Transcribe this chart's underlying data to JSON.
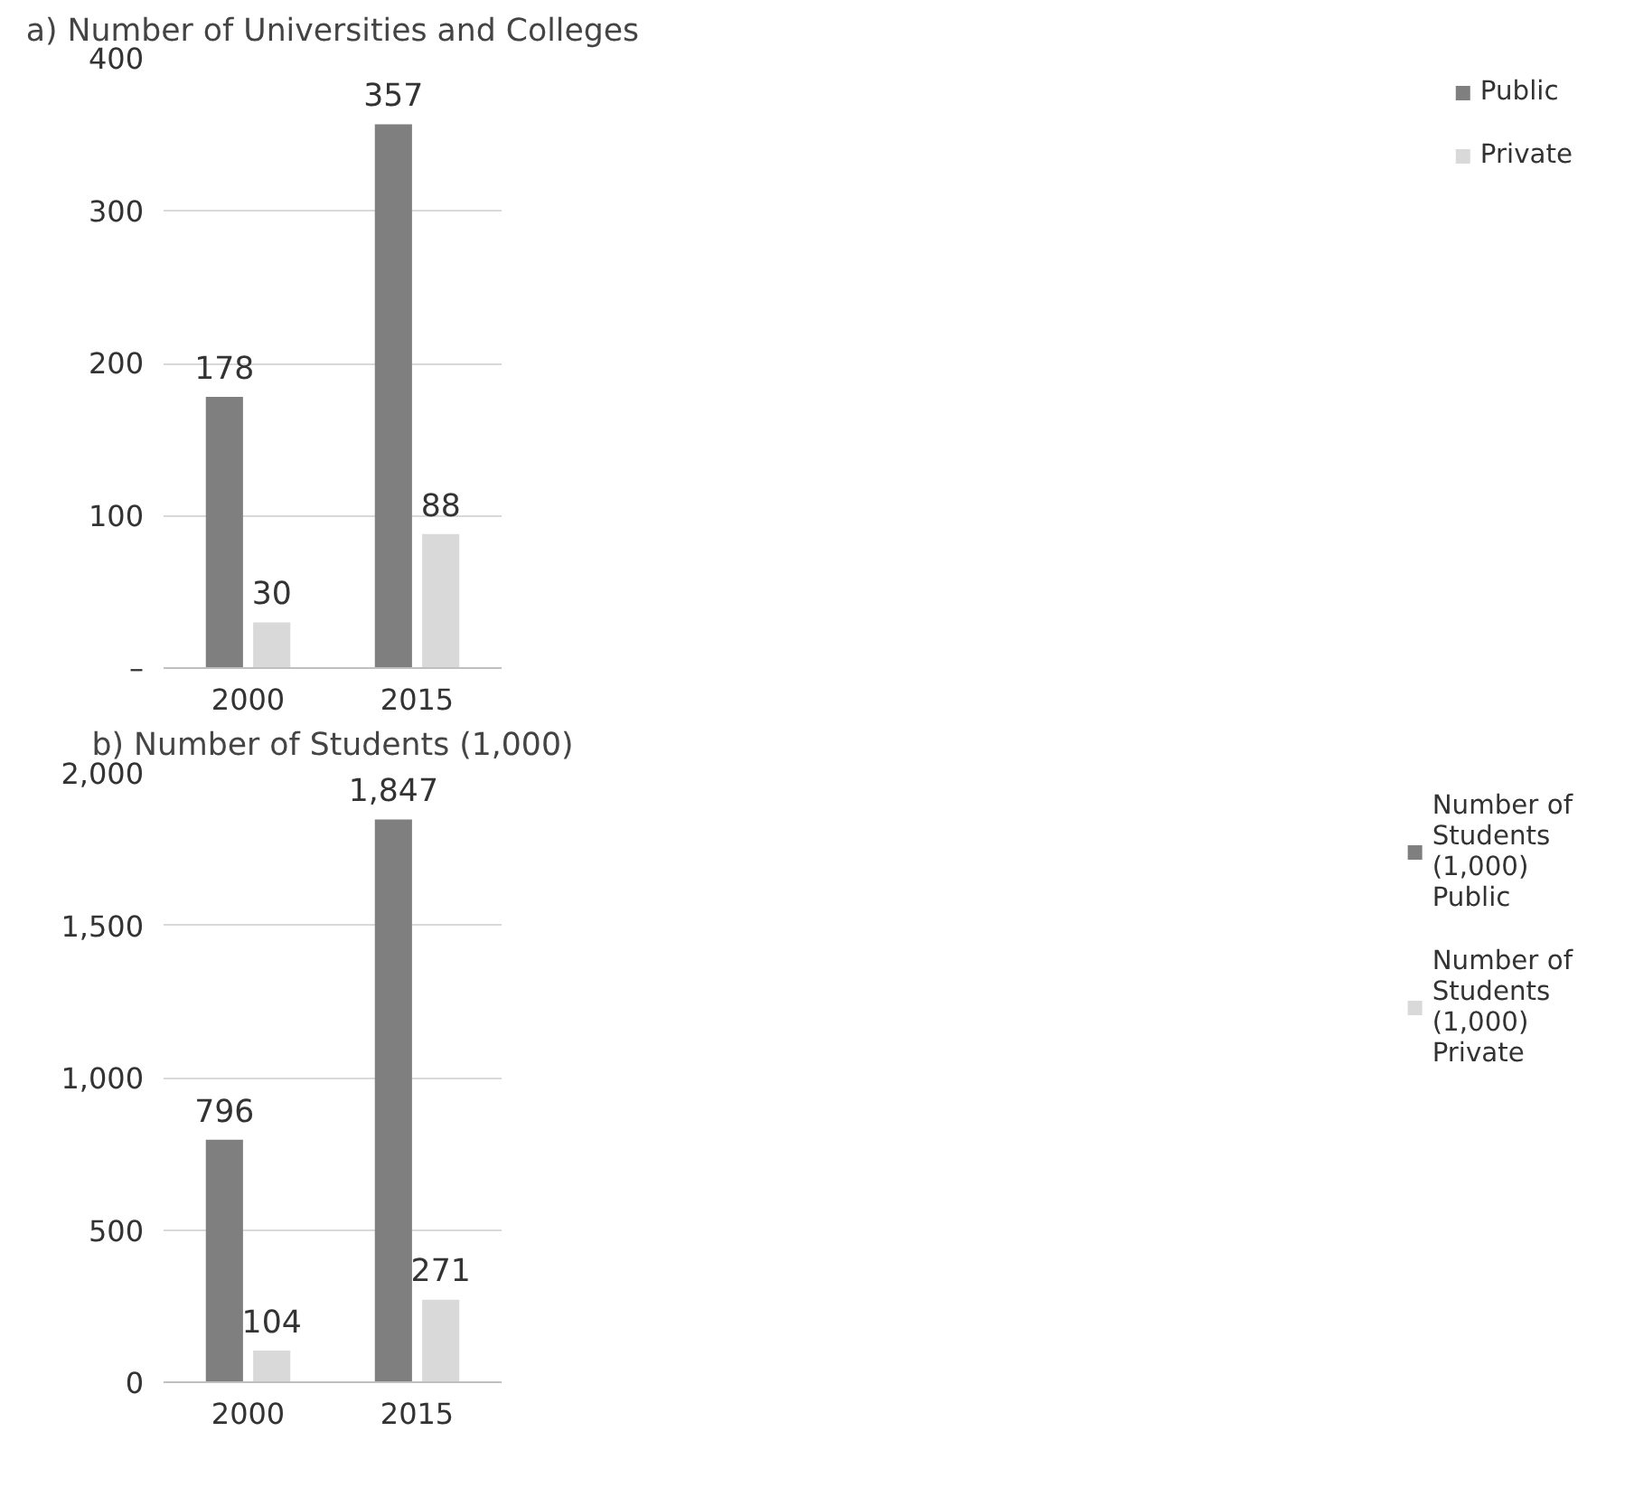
{
  "chart_data": [
    {
      "type": "bar",
      "title": "a) Number of Universities and Colleges",
      "categories": [
        "2000",
        "2015"
      ],
      "series": [
        {
          "name": "Public",
          "color": "#7f7f7f",
          "values": [
            178,
            357
          ]
        },
        {
          "name": "Private",
          "color": "#d9d9d9",
          "values": [
            30,
            88
          ]
        }
      ],
      "ylim": [
        0,
        400
      ],
      "yticks": [
        {
          "value": 0,
          "label": "–"
        },
        100,
        200,
        300,
        400
      ],
      "grid": "y",
      "legend": "right",
      "data_labels": true
    },
    {
      "type": "bar",
      "title": "b) Number of Students (1,000)",
      "categories": [
        "2000",
        "2015"
      ],
      "series": [
        {
          "name": "Number of Students (1,000) Public",
          "color": "#7f7f7f",
          "values": [
            796,
            1847
          ],
          "value_labels": [
            "796",
            "1,847"
          ]
        },
        {
          "name": "Number of Students (1,000) Private",
          "color": "#d9d9d9",
          "values": [
            104,
            271
          ],
          "value_labels": [
            "104",
            "271"
          ]
        }
      ],
      "ylim": [
        0,
        2000
      ],
      "yticks": [
        0,
        500,
        {
          "value": 1000,
          "label": "1,000"
        },
        {
          "value": 1500,
          "label": "1,500"
        },
        {
          "value": 2000,
          "label": "2,000"
        }
      ],
      "grid": "y",
      "legend": "right"
    }
  ]
}
